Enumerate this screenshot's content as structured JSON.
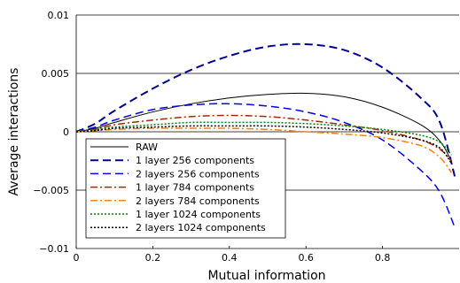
{
  "chart_data": {
    "type": "line",
    "xlabel": "Mutual information",
    "ylabel": "Average interactions",
    "xlim": [
      0,
      1
    ],
    "ylim": [
      -0.01,
      0.01
    ],
    "x_ticks": [
      0,
      0.2,
      0.4,
      0.6,
      0.8
    ],
    "x_tick_labels": [
      "0",
      "0.2",
      "0.4",
      "0.6",
      "0.8"
    ],
    "y_ticks": [
      -0.01,
      -0.005,
      0,
      0.005,
      0.01
    ],
    "y_tick_labels": [
      "−0.01",
      "−0.005",
      "0",
      "0.005",
      "0.01"
    ],
    "grid": "horizontal",
    "legend_position": "bottom-left",
    "series": [
      {
        "name": "RAW",
        "color": "#000000",
        "dash": "",
        "width": 1,
        "x": [
          0,
          0.05,
          0.1,
          0.2,
          0.3,
          0.4,
          0.5,
          0.6,
          0.7,
          0.8,
          0.9,
          0.95,
          0.98
        ],
        "y": [
          0,
          0.0003,
          0.0008,
          0.0017,
          0.0024,
          0.0029,
          0.0032,
          0.0033,
          0.003,
          0.0021,
          0.0006,
          -0.0008,
          -0.0025
        ]
      },
      {
        "name": "1 layer 256 components",
        "color": "#00008b",
        "dash": "9 5",
        "width": 2,
        "x": [
          0,
          0.05,
          0.1,
          0.2,
          0.3,
          0.4,
          0.5,
          0.6,
          0.7,
          0.8,
          0.9,
          0.95,
          0.99
        ],
        "y": [
          0,
          0.0007,
          0.0018,
          0.0037,
          0.0053,
          0.0065,
          0.0073,
          0.0075,
          0.007,
          0.0055,
          0.0029,
          0.0008,
          -0.004
        ]
      },
      {
        "name": "2 layers 256 components",
        "color": "#0000ee",
        "dash": "9 5",
        "width": 1.5,
        "x": [
          0,
          0.05,
          0.1,
          0.2,
          0.3,
          0.4,
          0.5,
          0.6,
          0.7,
          0.8,
          0.9,
          0.95,
          0.99
        ],
        "y": [
          0,
          0.0004,
          0.001,
          0.0019,
          0.0023,
          0.0024,
          0.0022,
          0.0017,
          0.0008,
          -0.0007,
          -0.0033,
          -0.0052,
          -0.0083
        ]
      },
      {
        "name": "1 layer 784 components",
        "color": "#a52a00",
        "dash": "8 3 2 3",
        "width": 1.5,
        "x": [
          0,
          0.05,
          0.1,
          0.2,
          0.3,
          0.4,
          0.5,
          0.6,
          0.7,
          0.8,
          0.9,
          0.95,
          0.98
        ],
        "y": [
          0,
          0.0002,
          0.0006,
          0.001,
          0.0013,
          0.0014,
          0.0013,
          0.001,
          0.0006,
          0.0001,
          -0.0007,
          -0.0015,
          -0.0025
        ]
      },
      {
        "name": "2 layers 784 components",
        "color": "#ff7f0e",
        "dash": "8 3 2 3",
        "width": 1.5,
        "x": [
          0,
          0.05,
          0.1,
          0.2,
          0.3,
          0.4,
          0.5,
          0.6,
          0.7,
          0.8,
          0.9,
          0.95,
          0.98
        ],
        "y": [
          0,
          0.0001,
          0.0002,
          0.0003,
          0.0003,
          0.0003,
          0.0002,
          0,
          -0.0002,
          -0.0005,
          -0.0012,
          -0.0022,
          -0.0035
        ]
      },
      {
        "name": "1 layer 1024 components",
        "color": "#008000",
        "dash": "2 2",
        "width": 1.5,
        "x": [
          0,
          0.05,
          0.1,
          0.2,
          0.3,
          0.4,
          0.5,
          0.6,
          0.7,
          0.8,
          0.9,
          0.95,
          0.98
        ],
        "y": [
          0,
          0.0002,
          0.0004,
          0.0006,
          0.0008,
          0.0008,
          0.0008,
          0.0007,
          0.0005,
          0.0002,
          -0.0003,
          -0.0009,
          -0.002
        ]
      },
      {
        "name": "2 layers 1024 components",
        "color": "#000000",
        "dash": "2 2",
        "width": 1.5,
        "x": [
          0,
          0.05,
          0.1,
          0.2,
          0.3,
          0.4,
          0.5,
          0.6,
          0.7,
          0.8,
          0.9,
          0.95,
          0.98
        ],
        "y": [
          0,
          0.0001,
          0.0003,
          0.0004,
          0.0005,
          0.0005,
          0.0005,
          0.0004,
          0.0002,
          -0.0001,
          -0.0007,
          -0.0014,
          -0.0027
        ]
      }
    ]
  }
}
